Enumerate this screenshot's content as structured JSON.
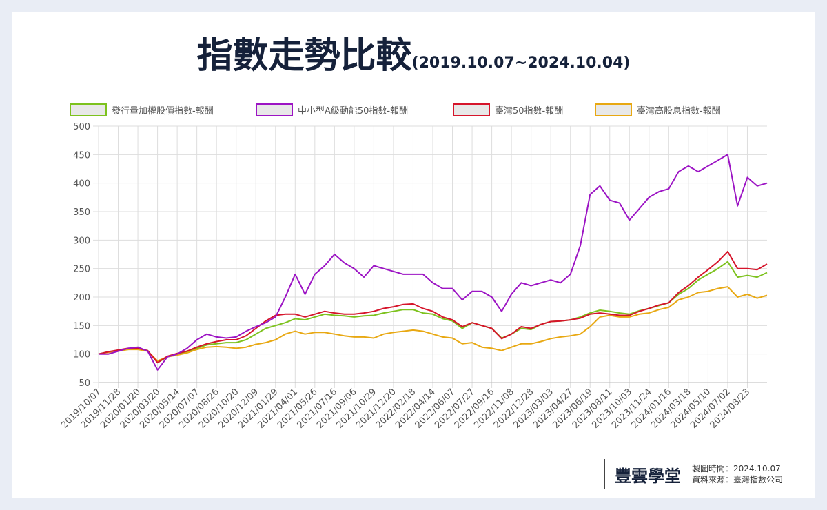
{
  "header": {
    "title": "指數走勢比較",
    "subtitle": "(2019.10.07~2024.10.04)"
  },
  "chart_data": {
    "type": "line",
    "categories": [
      "2019/10/07",
      null,
      "2019/11/28",
      null,
      "2020/01/20",
      null,
      "2020/03/20",
      null,
      "2020/05/14",
      null,
      "2020/07/07",
      null,
      "2020/08/26",
      null,
      "2020/10/20",
      null,
      "2020/12/09",
      null,
      "2021/01/29",
      null,
      "2021/04/01",
      null,
      "2021/05/26",
      null,
      "2021/07/16",
      null,
      "2021/09/06",
      null,
      "2021/10/29",
      null,
      "2021/12/20",
      null,
      "2022/02/18",
      null,
      "2022/04/14",
      null,
      "2022/06/07",
      null,
      "2022/07/27",
      null,
      "2022/09/16",
      null,
      "2022/11/08",
      null,
      "2022/12/28",
      null,
      "2023/03/03",
      null,
      "2023/04/27",
      null,
      "2023/06/19",
      null,
      "2023/08/11",
      null,
      "2023/10/03",
      null,
      "2023/11/24",
      null,
      "2024/01/16",
      null,
      "2024/03/18",
      null,
      "2024/05/10",
      null,
      "2024/07/02",
      null,
      "2024/08/23",
      null,
      null
    ],
    "series": [
      {
        "name": "發行量加權股價指數-報酬",
        "color": "#7dc21e",
        "values": [
          100,
          104,
          106,
          108,
          110,
          106,
          85,
          95,
          100,
          104,
          110,
          116,
          118,
          120,
          120,
          125,
          135,
          145,
          150,
          155,
          162,
          160,
          165,
          170,
          168,
          167,
          165,
          167,
          168,
          172,
          175,
          178,
          178,
          172,
          170,
          162,
          158,
          145,
          155,
          150,
          145,
          128,
          135,
          145,
          143,
          152,
          157,
          158,
          160,
          165,
          172,
          177,
          175,
          172,
          170,
          176,
          180,
          185,
          190,
          205,
          215,
          230,
          240,
          250,
          262,
          235,
          238,
          235,
          243
        ]
      },
      {
        "name": "中小型A級動能50指數-報酬",
        "color": "#9c14c4",
        "values": [
          100,
          100,
          105,
          110,
          112,
          105,
          72,
          95,
          100,
          110,
          125,
          135,
          130,
          128,
          130,
          140,
          148,
          155,
          165,
          200,
          240,
          205,
          240,
          255,
          275,
          260,
          250,
          235,
          255,
          250,
          245,
          240,
          240,
          240,
          225,
          215,
          215,
          195,
          210,
          210,
          200,
          175,
          205,
          225,
          220,
          225,
          230,
          225,
          240,
          290,
          380,
          395,
          370,
          365,
          335,
          355,
          375,
          385,
          390,
          420,
          430,
          420,
          430,
          440,
          450,
          360,
          410,
          395,
          400
        ]
      },
      {
        "name": "臺灣50指數-報酬",
        "color": "#d6152b",
        "values": [
          100,
          104,
          107,
          110,
          110,
          106,
          85,
          96,
          101,
          105,
          112,
          118,
          122,
          125,
          125,
          132,
          145,
          158,
          168,
          170,
          170,
          165,
          170,
          175,
          172,
          170,
          170,
          172,
          175,
          180,
          183,
          187,
          188,
          180,
          175,
          165,
          160,
          148,
          155,
          150,
          145,
          127,
          135,
          148,
          145,
          152,
          157,
          158,
          160,
          163,
          170,
          172,
          170,
          168,
          168,
          175,
          180,
          186,
          190,
          208,
          220,
          235,
          248,
          262,
          280,
          250,
          250,
          248,
          258
        ]
      },
      {
        "name": "臺灣高股息指數-報酬",
        "color": "#e8a812",
        "values": [
          100,
          103,
          105,
          108,
          108,
          105,
          88,
          95,
          98,
          102,
          108,
          112,
          113,
          112,
          110,
          112,
          117,
          120,
          125,
          135,
          140,
          135,
          138,
          138,
          135,
          132,
          130,
          130,
          128,
          135,
          138,
          140,
          142,
          140,
          135,
          130,
          128,
          118,
          120,
          112,
          110,
          106,
          112,
          118,
          118,
          122,
          127,
          130,
          132,
          135,
          148,
          165,
          168,
          165,
          165,
          170,
          172,
          178,
          182,
          195,
          200,
          208,
          210,
          215,
          218,
          200,
          205,
          198,
          203
        ]
      }
    ],
    "ylim": [
      50,
      500
    ],
    "yticks": [
      50,
      100,
      150,
      200,
      250,
      300,
      350,
      400,
      450,
      500
    ],
    "grid": true,
    "legend": "top"
  },
  "footer": {
    "logo": "豐雲學堂",
    "date": "製圖時間：2024.10.07",
    "source": "資料來源：臺灣指數公司"
  }
}
